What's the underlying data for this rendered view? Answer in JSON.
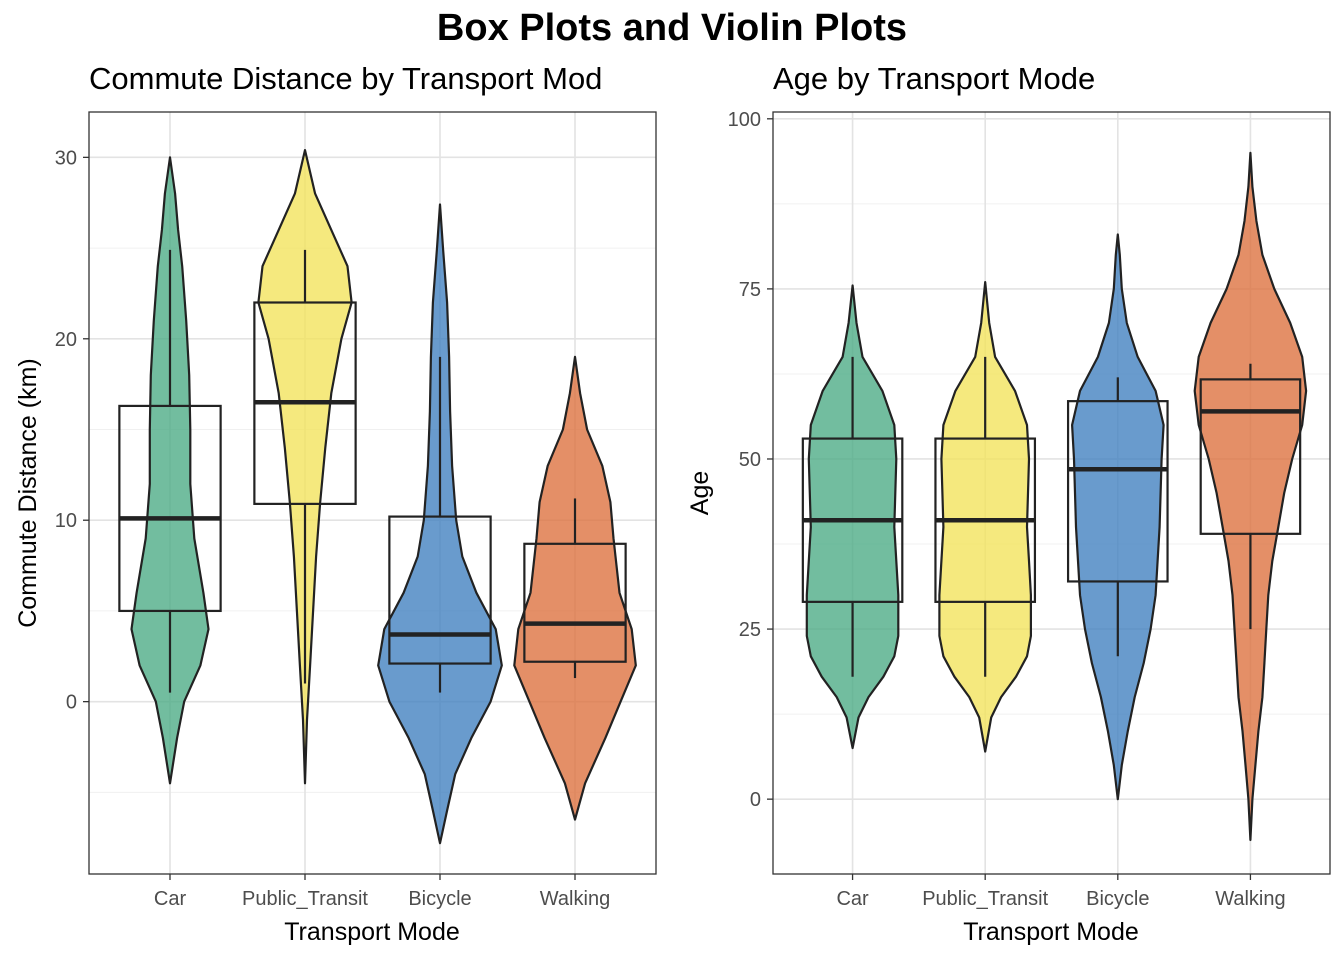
{
  "title": "Box Plots and Violin Plots",
  "colors": {
    "Car": "#4aaa84",
    "Public_Transit": "#f2e35a",
    "Bicycle": "#3f7fbf",
    "Walking": "#dd6f3c"
  },
  "chart_data": [
    {
      "type": "violin-box",
      "title": "Commute Distance by Transport Mod",
      "xlabel": "Transport Mode",
      "ylabel": "Commute Distance (km)",
      "categories": [
        "Car",
        "Public_Transit",
        "Bicycle",
        "Walking"
      ],
      "ylim": [
        -9.5,
        32.5
      ],
      "yticks": [
        0,
        10,
        20,
        30
      ],
      "grid": true,
      "boxes": [
        {
          "category": "Car",
          "min": 0.5,
          "q1": 5.0,
          "median": 10.1,
          "q3": 16.3,
          "max": 24.9
        },
        {
          "category": "Public_Transit",
          "min": 1.0,
          "q1": 10.9,
          "median": 16.5,
          "q3": 22.0,
          "max": 24.9
        },
        {
          "category": "Bicycle",
          "min": 0.5,
          "q1": 2.1,
          "median": 3.7,
          "q3": 10.2,
          "max": 19.0
        },
        {
          "category": "Walking",
          "min": 1.3,
          "q1": 2.2,
          "median": 4.3,
          "q3": 8.7,
          "max": 11.2
        }
      ],
      "violins": [
        {
          "category": "Car",
          "profile": [
            [
              -4.5,
              0
            ],
            [
              -2,
              0.07
            ],
            [
              0,
              0.14
            ],
            [
              2,
              0.3
            ],
            [
              4,
              0.38
            ],
            [
              6,
              0.33
            ],
            [
              9,
              0.24
            ],
            [
              12,
              0.2
            ],
            [
              15,
              0.2
            ],
            [
              18,
              0.19
            ],
            [
              21,
              0.16
            ],
            [
              24,
              0.12
            ],
            [
              26,
              0.08
            ],
            [
              28,
              0.05
            ],
            [
              30,
              0
            ]
          ]
        },
        {
          "category": "Public_Transit",
          "profile": [
            [
              -4.5,
              0
            ],
            [
              -1,
              0.02
            ],
            [
              2,
              0.05
            ],
            [
              5,
              0.08
            ],
            [
              8,
              0.11
            ],
            [
              11,
              0.15
            ],
            [
              14,
              0.2
            ],
            [
              17,
              0.26
            ],
            [
              20,
              0.36
            ],
            [
              22,
              0.46
            ],
            [
              24,
              0.42
            ],
            [
              26,
              0.26
            ],
            [
              28,
              0.1
            ],
            [
              30.4,
              0
            ]
          ]
        },
        {
          "category": "Bicycle",
          "profile": [
            [
              -7.8,
              0
            ],
            [
              -6,
              0.07
            ],
            [
              -4,
              0.15
            ],
            [
              -2,
              0.31
            ],
            [
              0,
              0.5
            ],
            [
              2,
              0.61
            ],
            [
              4,
              0.55
            ],
            [
              6,
              0.36
            ],
            [
              8,
              0.22
            ],
            [
              10,
              0.16
            ],
            [
              13,
              0.12
            ],
            [
              16,
              0.1
            ],
            [
              19,
              0.09
            ],
            [
              22,
              0.07
            ],
            [
              25,
              0.03
            ],
            [
              27.4,
              0
            ]
          ]
        },
        {
          "category": "Walking",
          "profile": [
            [
              -6.5,
              0
            ],
            [
              -4.5,
              0.1
            ],
            [
              -2,
              0.3
            ],
            [
              0,
              0.45
            ],
            [
              2,
              0.6
            ],
            [
              4,
              0.56
            ],
            [
              6,
              0.44
            ],
            [
              9,
              0.38
            ],
            [
              11,
              0.35
            ],
            [
              13,
              0.27
            ],
            [
              15,
              0.12
            ],
            [
              17,
              0.05
            ],
            [
              19,
              0
            ]
          ]
        }
      ]
    },
    {
      "type": "violin-box",
      "title": "Age by Transport Mode",
      "xlabel": "Transport Mode",
      "ylabel": "Age",
      "categories": [
        "Car",
        "Public_Transit",
        "Bicycle",
        "Walking"
      ],
      "ylim": [
        -11,
        101
      ],
      "yticks": [
        0,
        25,
        50,
        75,
        100
      ],
      "grid": true,
      "boxes": [
        {
          "category": "Car",
          "min": 18,
          "q1": 29,
          "median": 41,
          "q3": 53,
          "max": 65
        },
        {
          "category": "Public_Transit",
          "min": 18,
          "q1": 29,
          "median": 41,
          "q3": 53,
          "max": 65
        },
        {
          "category": "Bicycle",
          "min": 21,
          "q1": 32,
          "median": 48.5,
          "q3": 58.5,
          "max": 62
        },
        {
          "category": "Walking",
          "min": 25,
          "q1": 39,
          "median": 57,
          "q3": 61.7,
          "max": 64
        }
      ],
      "violins": [
        {
          "category": "Car",
          "profile": [
            [
              7.5,
              0
            ],
            [
              12,
              0.06
            ],
            [
              15,
              0.16
            ],
            [
              18,
              0.31
            ],
            [
              21,
              0.42
            ],
            [
              24,
              0.46
            ],
            [
              27,
              0.46
            ],
            [
              30,
              0.46
            ],
            [
              35,
              0.44
            ],
            [
              40,
              0.42
            ],
            [
              45,
              0.43
            ],
            [
              50,
              0.44
            ],
            [
              55,
              0.42
            ],
            [
              60,
              0.3
            ],
            [
              65,
              0.1
            ],
            [
              70,
              0.04
            ],
            [
              75.5,
              0
            ]
          ]
        },
        {
          "category": "Public_Transit",
          "profile": [
            [
              7,
              0
            ],
            [
              12,
              0.06
            ],
            [
              15,
              0.16
            ],
            [
              18,
              0.31
            ],
            [
              21,
              0.42
            ],
            [
              24,
              0.46
            ],
            [
              27,
              0.46
            ],
            [
              30,
              0.46
            ],
            [
              35,
              0.44
            ],
            [
              40,
              0.42
            ],
            [
              45,
              0.43
            ],
            [
              50,
              0.44
            ],
            [
              55,
              0.42
            ],
            [
              60,
              0.3
            ],
            [
              65,
              0.1
            ],
            [
              70,
              0.04
            ],
            [
              76,
              0
            ]
          ]
        },
        {
          "category": "Bicycle",
          "profile": [
            [
              0,
              0
            ],
            [
              5,
              0.04
            ],
            [
              10,
              0.1
            ],
            [
              15,
              0.17
            ],
            [
              20,
              0.26
            ],
            [
              25,
              0.33
            ],
            [
              30,
              0.38
            ],
            [
              35,
              0.4
            ],
            [
              40,
              0.42
            ],
            [
              45,
              0.43
            ],
            [
              50,
              0.44
            ],
            [
              55,
              0.46
            ],
            [
              60,
              0.38
            ],
            [
              65,
              0.2
            ],
            [
              70,
              0.09
            ],
            [
              75,
              0.04
            ],
            [
              80,
              0.02
            ],
            [
              83,
              0
            ]
          ]
        },
        {
          "category": "Walking",
          "profile": [
            [
              -6,
              0
            ],
            [
              0,
              0.02
            ],
            [
              5,
              0.05
            ],
            [
              10,
              0.08
            ],
            [
              15,
              0.12
            ],
            [
              20,
              0.14
            ],
            [
              25,
              0.16
            ],
            [
              30,
              0.18
            ],
            [
              35,
              0.22
            ],
            [
              40,
              0.28
            ],
            [
              45,
              0.34
            ],
            [
              50,
              0.42
            ],
            [
              55,
              0.52
            ],
            [
              60,
              0.56
            ],
            [
              65,
              0.52
            ],
            [
              70,
              0.4
            ],
            [
              75,
              0.24
            ],
            [
              80,
              0.12
            ],
            [
              85,
              0.06
            ],
            [
              90,
              0.02
            ],
            [
              95,
              0
            ]
          ]
        }
      ]
    }
  ]
}
